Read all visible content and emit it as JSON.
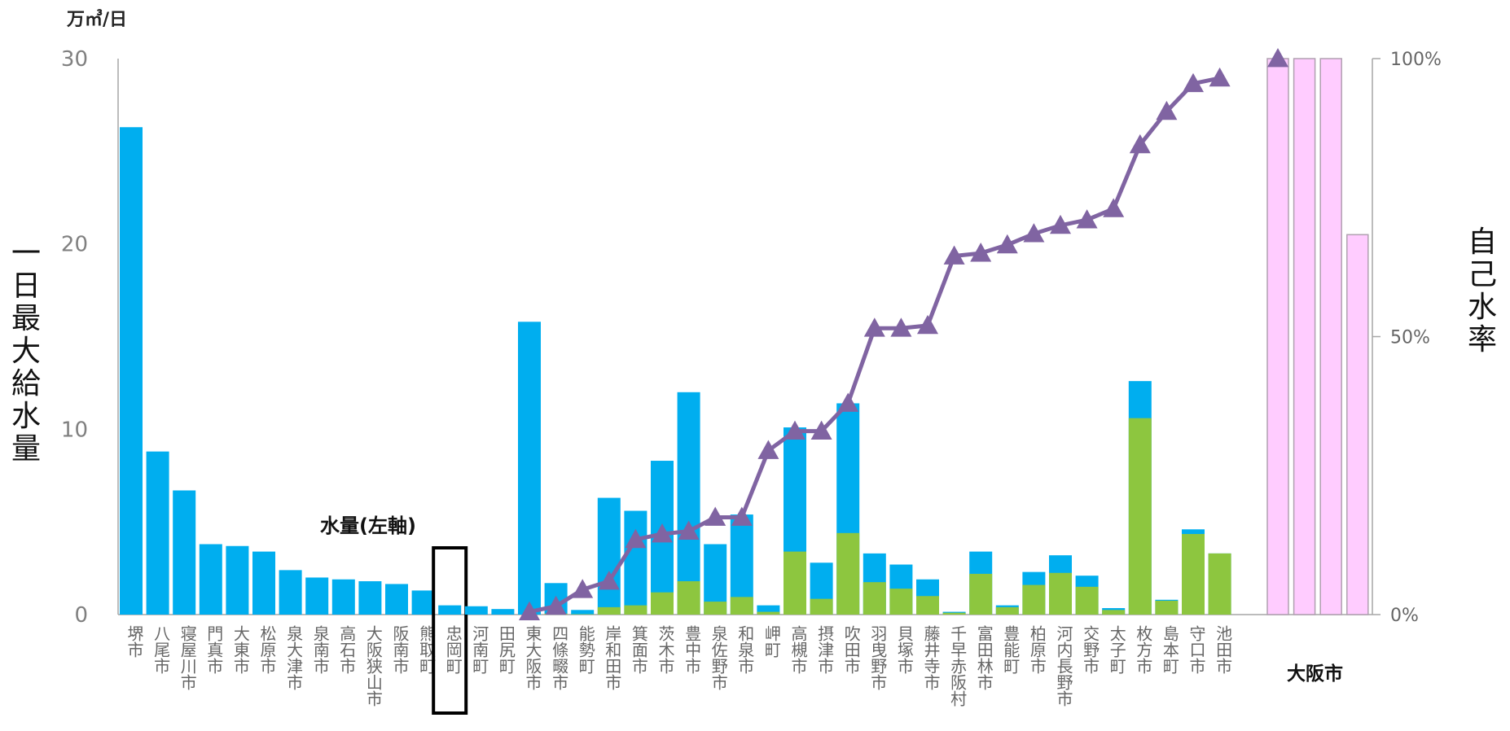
{
  "unit_label": "万㎥/日",
  "left_axis_title": "一日最大給水量",
  "right_axis_title": "自己水率",
  "series_label": "水量(左軸)",
  "highlight_category": "忠岡町",
  "osaka_label": "大阪市",
  "colors": {
    "purchased": "#00AEEF",
    "own": "#8DC63F",
    "osaka": "#FFCCFF",
    "osaka_stroke": "#B0A0B0",
    "line": "#8064A2",
    "axis": "#A6A6A6",
    "tick_text": "#808080"
  },
  "chart_data": {
    "type": "bar",
    "left_axis": {
      "ylim": [
        0,
        30
      ],
      "ticks": [
        "0",
        "10",
        "20",
        "30"
      ]
    },
    "right_axis": {
      "ylim": [
        0,
        100
      ],
      "ticks": [
        "0%",
        "50%",
        "100%"
      ]
    },
    "categories": [
      "堺市",
      "八尾市",
      "寝屋川市",
      "門真市",
      "大東市",
      "松原市",
      "泉大津市",
      "泉南市",
      "高石市",
      "大阪狭山市",
      "阪南市",
      "熊取町",
      "忠岡町",
      "河南町",
      "田尻町",
      "東大阪市",
      "四條畷市",
      "能勢町",
      "岸和田市",
      "箕面市",
      "茨木市",
      "豊中市",
      "泉佐野市",
      "和泉市",
      "岬町",
      "高槻市",
      "摂津市",
      "吹田市",
      "羽曳野市",
      "貝塚市",
      "藤井寺市",
      "千早赤阪村",
      "富田林市",
      "豊能町",
      "柏原市",
      "河内長野市",
      "交野市",
      "太子町",
      "枚方市",
      "島本町",
      "守口市",
      "池田市"
    ],
    "series": [
      {
        "type": "bar",
        "values": [
          26.3,
          8.8,
          6.7,
          3.8,
          3.7,
          3.4,
          2.4,
          2.0,
          1.9,
          1.8,
          1.65,
          1.3,
          0.5,
          0.45,
          0.3,
          15.8,
          1.7,
          0.25,
          6.3,
          5.6,
          8.3,
          12.0,
          3.8,
          5.4,
          0.5,
          10.1,
          2.8,
          11.4,
          3.3,
          2.7,
          1.9,
          0.15,
          3.4,
          0.5,
          2.3,
          3.2,
          2.1,
          0.35,
          12.6,
          0.8,
          4.6,
          3.3
        ]
      },
      {
        "type": "bar",
        "values": [
          0,
          0,
          0,
          0,
          0,
          0,
          0,
          0,
          0,
          0,
          0,
          0,
          0,
          0,
          0,
          0,
          0.05,
          0.02,
          0.4,
          0.5,
          1.2,
          1.8,
          0.7,
          0.95,
          0.15,
          3.4,
          0.85,
          4.4,
          1.75,
          1.4,
          1.0,
          0.1,
          2.2,
          0.4,
          1.6,
          2.25,
          1.5,
          0.25,
          10.6,
          0.75,
          4.35,
          3.3
        ]
      },
      {
        "type": "line",
        "values": [
          null,
          null,
          null,
          null,
          null,
          null,
          null,
          null,
          null,
          null,
          null,
          null,
          null,
          null,
          null,
          0.5,
          1.5,
          4.5,
          6,
          13.5,
          14.5,
          15,
          17.5,
          17.5,
          29.5,
          33,
          33,
          38,
          51.5,
          51.5,
          52,
          64.5,
          65,
          66.5,
          68.5,
          70,
          71,
          73,
          84.5,
          90.5,
          95.5,
          96.5
        ]
      }
    ],
    "osaka": {
      "categories": [
        "",
        "",
        "",
        ""
      ],
      "values": [
        30,
        30,
        30,
        20.5
      ],
      "line_point_percent": 100
    }
  }
}
